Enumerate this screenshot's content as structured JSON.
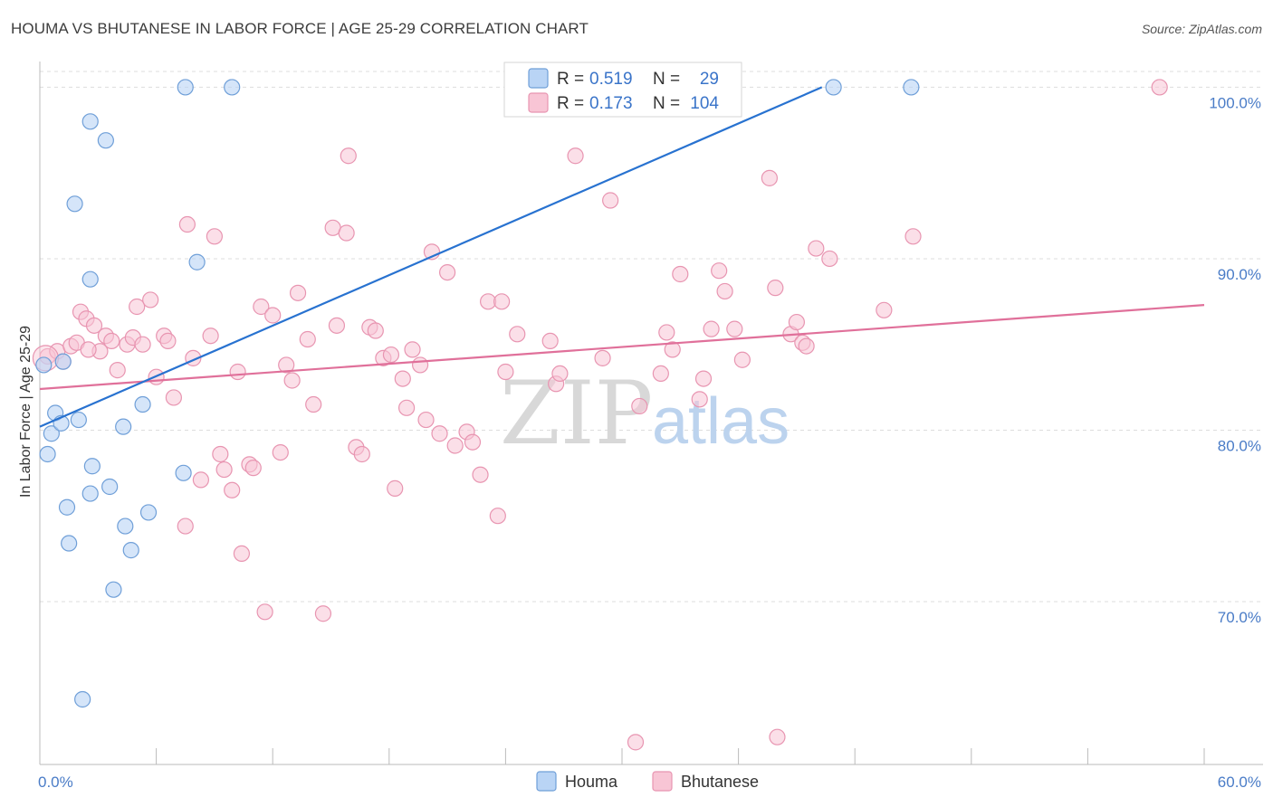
{
  "title": "HOUMA VS BHUTANESE IN LABOR FORCE | AGE 25-29 CORRELATION CHART",
  "source": "Source: ZipAtlas.com",
  "watermark": {
    "zip": "ZIP",
    "atlas": "atlas"
  },
  "colors": {
    "houma_fill": "#b9d4f5",
    "houma_stroke": "#6f9fd8",
    "houma_line": "#2872d0",
    "bhutanese_fill": "#f8c5d5",
    "bhutanese_stroke": "#e895b1",
    "bhutanese_line": "#e0709a",
    "axis_text": "#4a7cc7",
    "grid": "#dddddd"
  },
  "legend": {
    "r_label": "R =",
    "n_label": "N =",
    "houma_r": "0.519",
    "houma_n": "29",
    "bhutanese_r": "0.173",
    "bhutanese_n": "104"
  },
  "chart_data": {
    "type": "scatter",
    "title": "HOUMA VS BHUTANESE IN LABOR FORCE | AGE 25-29 CORRELATION CHART",
    "xlabel": "",
    "ylabel": "In Labor Force | Age 25-29",
    "xlim": [
      0,
      60
    ],
    "ylim": [
      60.5,
      101.5
    ],
    "x_tick_labels": [
      "0.0%",
      "60.0%"
    ],
    "y_ticks": [
      70,
      80,
      90,
      100
    ],
    "y_tick_labels": [
      "70.0%",
      "80.0%",
      "90.0%",
      "100.0%"
    ],
    "grid": true,
    "legend_position": "top-center",
    "series": [
      {
        "name": "Houma",
        "color": "#b9d4f5",
        "trend": {
          "x": [
            0,
            40.3
          ],
          "y": [
            80.2,
            100
          ]
        },
        "points": [
          [
            0.2,
            83.8
          ],
          [
            0.8,
            81.0
          ],
          [
            0.6,
            79.8
          ],
          [
            1.1,
            80.4
          ],
          [
            0.4,
            78.6
          ],
          [
            1.2,
            84.0
          ],
          [
            1.8,
            93.2
          ],
          [
            2.6,
            98.0
          ],
          [
            3.4,
            96.9
          ],
          [
            2.7,
            77.9
          ],
          [
            2.0,
            80.6
          ],
          [
            2.6,
            76.3
          ],
          [
            1.4,
            75.5
          ],
          [
            1.5,
            73.4
          ],
          [
            3.6,
            76.7
          ],
          [
            5.3,
            81.5
          ],
          [
            4.3,
            80.2
          ],
          [
            4.4,
            74.4
          ],
          [
            5.6,
            75.2
          ],
          [
            4.7,
            73.0
          ],
          [
            3.8,
            70.7
          ],
          [
            2.2,
            64.3
          ],
          [
            7.4,
            77.5
          ],
          [
            2.6,
            88.8
          ],
          [
            8.1,
            89.8
          ],
          [
            7.5,
            100.0
          ],
          [
            9.9,
            100.0
          ],
          [
            40.9,
            100.0
          ],
          [
            44.9,
            100.0
          ]
        ]
      },
      {
        "name": "Bhutanese",
        "color": "#f8c5d5",
        "trend": {
          "x": [
            0,
            60
          ],
          "y": [
            82.4,
            87.3
          ]
        },
        "points": [
          [
            0.4,
            84.3
          ],
          [
            0.9,
            84.6
          ],
          [
            1.2,
            84.0
          ],
          [
            1.6,
            84.9
          ],
          [
            1.9,
            85.1
          ],
          [
            2.1,
            86.9
          ],
          [
            2.4,
            86.5
          ],
          [
            2.8,
            86.1
          ],
          [
            3.1,
            84.6
          ],
          [
            3.4,
            85.5
          ],
          [
            3.7,
            85.2
          ],
          [
            4.0,
            83.5
          ],
          [
            4.5,
            85.0
          ],
          [
            4.8,
            85.4
          ],
          [
            5.0,
            87.2
          ],
          [
            5.3,
            85.0
          ],
          [
            5.7,
            87.6
          ],
          [
            6.0,
            83.1
          ],
          [
            6.4,
            85.5
          ],
          [
            6.6,
            85.2
          ],
          [
            6.9,
            81.9
          ],
          [
            7.5,
            74.4
          ],
          [
            7.6,
            92.0
          ],
          [
            7.9,
            84.2
          ],
          [
            8.3,
            77.1
          ],
          [
            8.8,
            85.5
          ],
          [
            9.0,
            91.3
          ],
          [
            9.3,
            78.6
          ],
          [
            9.5,
            77.7
          ],
          [
            9.9,
            76.5
          ],
          [
            10.2,
            83.4
          ],
          [
            10.4,
            72.8
          ],
          [
            10.8,
            78.0
          ],
          [
            11.0,
            77.8
          ],
          [
            11.4,
            87.2
          ],
          [
            11.6,
            69.4
          ],
          [
            12.0,
            86.7
          ],
          [
            12.4,
            78.7
          ],
          [
            12.7,
            83.8
          ],
          [
            13.0,
            82.9
          ],
          [
            13.3,
            88.0
          ],
          [
            13.8,
            85.3
          ],
          [
            14.1,
            81.5
          ],
          [
            14.6,
            69.3
          ],
          [
            15.1,
            91.8
          ],
          [
            15.3,
            86.1
          ],
          [
            15.8,
            91.5
          ],
          [
            15.9,
            96.0
          ],
          [
            16.3,
            79.0
          ],
          [
            16.6,
            78.6
          ],
          [
            17.0,
            86.0
          ],
          [
            17.3,
            85.8
          ],
          [
            17.7,
            84.2
          ],
          [
            18.1,
            84.4
          ],
          [
            18.3,
            76.6
          ],
          [
            18.7,
            83.0
          ],
          [
            18.9,
            81.3
          ],
          [
            19.2,
            84.7
          ],
          [
            19.6,
            83.8
          ],
          [
            19.9,
            80.6
          ],
          [
            20.2,
            90.4
          ],
          [
            20.6,
            79.8
          ],
          [
            21.0,
            89.2
          ],
          [
            21.4,
            79.1
          ],
          [
            22.0,
            79.9
          ],
          [
            22.3,
            79.3
          ],
          [
            22.7,
            77.4
          ],
          [
            23.1,
            87.5
          ],
          [
            23.8,
            87.5
          ],
          [
            23.6,
            75.0
          ],
          [
            24.0,
            83.4
          ],
          [
            24.6,
            85.6
          ],
          [
            26.3,
            85.2
          ],
          [
            26.6,
            82.7
          ],
          [
            26.8,
            83.3
          ],
          [
            27.6,
            96.0
          ],
          [
            29.0,
            84.2
          ],
          [
            29.4,
            93.4
          ],
          [
            30.7,
            61.8
          ],
          [
            30.9,
            81.4
          ],
          [
            32.0,
            83.3
          ],
          [
            32.3,
            85.7
          ],
          [
            32.6,
            84.7
          ],
          [
            33.0,
            89.1
          ],
          [
            34.0,
            81.8
          ],
          [
            34.2,
            83.0
          ],
          [
            34.6,
            85.9
          ],
          [
            35.0,
            89.3
          ],
          [
            35.3,
            88.1
          ],
          [
            35.8,
            85.9
          ],
          [
            36.2,
            84.1
          ],
          [
            37.6,
            94.7
          ],
          [
            37.9,
            88.3
          ],
          [
            38.0,
            62.1
          ],
          [
            38.7,
            85.6
          ],
          [
            39.0,
            86.3
          ],
          [
            39.3,
            85.1
          ],
          [
            39.5,
            84.9
          ],
          [
            40.0,
            90.6
          ],
          [
            40.7,
            90.0
          ],
          [
            43.5,
            87.0
          ],
          [
            45.0,
            91.3
          ],
          [
            57.7,
            100.0
          ],
          [
            2.5,
            84.7
          ]
        ]
      }
    ]
  },
  "bottom_legend": {
    "houma": "Houma",
    "bhutanese": "Bhutanese"
  }
}
